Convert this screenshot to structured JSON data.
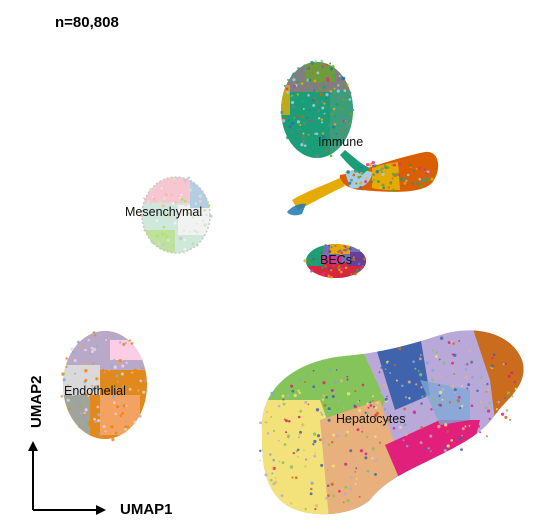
{
  "chart_data": {
    "type": "scatter",
    "title": "n=80,808",
    "xlabel": "UMAP1",
    "ylabel": "UMAP2",
    "grid": false,
    "legend": "none",
    "clusters": [
      {
        "name": "Immune",
        "colors": [
          "#1b9e77",
          "#3b9d7a",
          "#7f7f7f",
          "#e6ab02",
          "#d95f02",
          "#a6cee3",
          "#66a61e",
          "#e7298a",
          "#1f78b4"
        ]
      },
      {
        "name": "Mesenchymal",
        "colors": [
          "#f7c6d0",
          "#cfe8dc",
          "#f2f2f2",
          "#b3de69",
          "#b3cde3",
          "#fbb4ae",
          "#ccebc5"
        ]
      },
      {
        "name": "BECs",
        "colors": [
          "#d7263d",
          "#7570b3",
          "#1b9e77",
          "#e6ab02",
          "#6a3d9a",
          "#e7298a",
          "#a6761d"
        ]
      },
      {
        "name": "Endothelial",
        "colors": [
          "#e08a1e",
          "#f4a261",
          "#b8a9c9",
          "#d9d9d9",
          "#80b1d3",
          "#fccde5",
          "#ff7f00"
        ]
      },
      {
        "name": "Hepatocytes",
        "colors": [
          "#f3e27a",
          "#84c45a",
          "#e7b07c",
          "#3f64ad",
          "#b8a9d9",
          "#e0207a",
          "#c96c1e",
          "#7fa7d6"
        ]
      }
    ]
  }
}
